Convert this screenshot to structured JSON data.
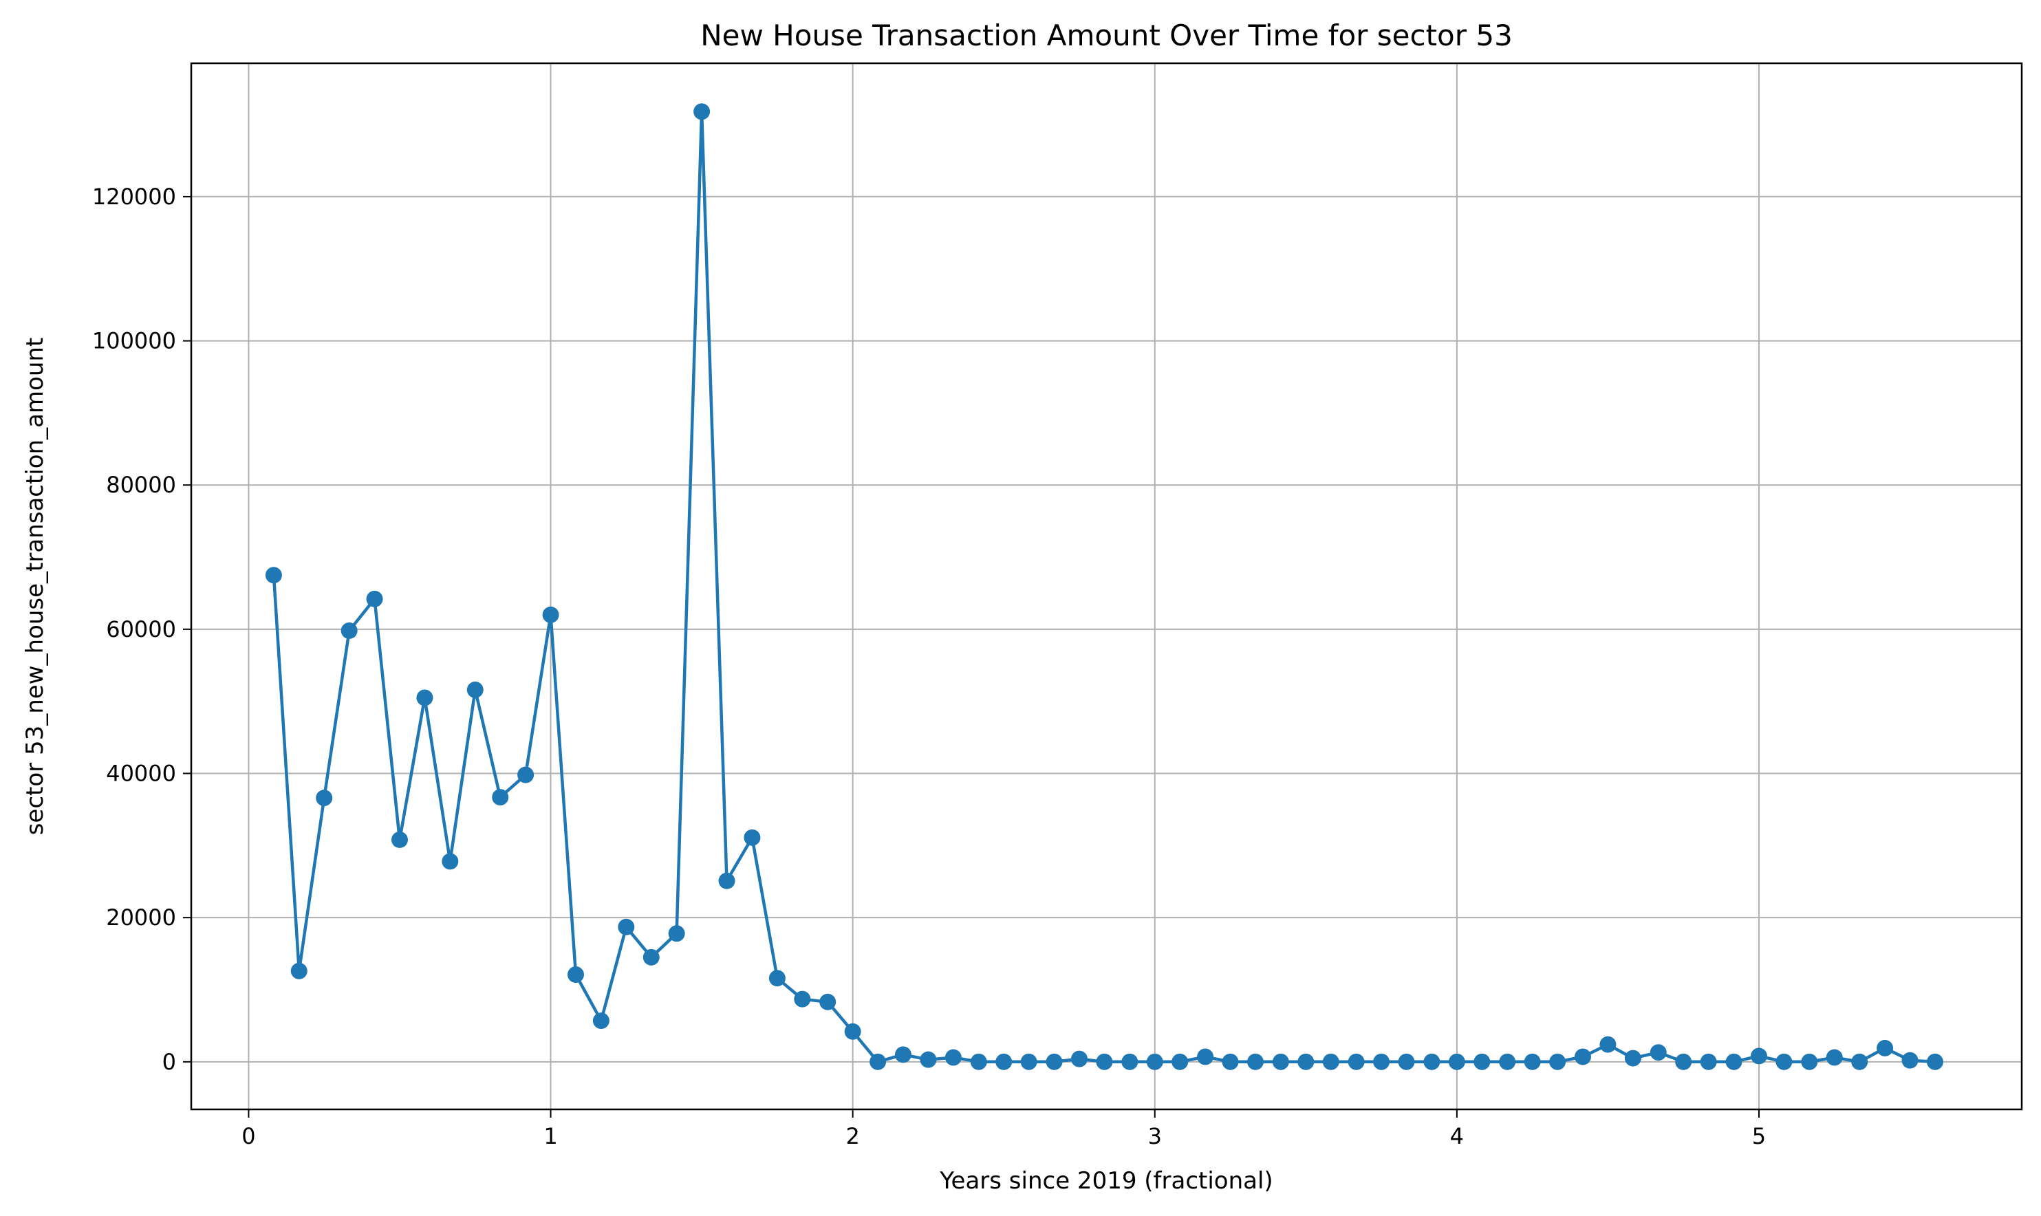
{
  "chart_data": {
    "type": "line",
    "title": "New House Transaction Amount Over Time for sector 53",
    "xlabel": "Years since 2019 (fractional)",
    "ylabel": "sector 53_new_house_transaction_amount",
    "xlim": [
      -0.19,
      5.87
    ],
    "ylim": [
      -6600,
      138500
    ],
    "xticks": [
      0,
      1,
      2,
      3,
      4,
      5
    ],
    "xtick_labels": [
      "0",
      "1",
      "2",
      "3",
      "4",
      "5"
    ],
    "yticks": [
      0,
      20000,
      40000,
      60000,
      80000,
      100000,
      120000
    ],
    "ytick_labels": [
      "0",
      "20000",
      "40000",
      "60000",
      "80000",
      "100000",
      "120000"
    ],
    "grid": true,
    "marker": "circle",
    "color": "#1f77b4",
    "series": [
      {
        "x": [
          0.083,
          0.167,
          0.25,
          0.333,
          0.417,
          0.5,
          0.583,
          0.667,
          0.75,
          0.833,
          0.917,
          1.0,
          1.083,
          1.167,
          1.25,
          1.333,
          1.417,
          1.5,
          1.583,
          1.667,
          1.75,
          1.833,
          1.917,
          2.0,
          2.083,
          2.167,
          2.25,
          2.333,
          2.417,
          2.5,
          2.583,
          2.667,
          2.75,
          2.833,
          2.917,
          3.0,
          3.083,
          3.167,
          3.25,
          3.333,
          3.417,
          3.5,
          3.583,
          3.667,
          3.75,
          3.833,
          3.917,
          4.0,
          4.083,
          4.167,
          4.25,
          4.333,
          4.417,
          4.5,
          4.583,
          4.667,
          4.75,
          4.833,
          4.917,
          5.0,
          5.083,
          5.167,
          5.25,
          5.333,
          5.417,
          5.5,
          5.583
        ],
        "y": [
          67500,
          12600,
          36600,
          59800,
          64200,
          30800,
          50500,
          27800,
          51600,
          36700,
          39800,
          62000,
          12100,
          5700,
          18700,
          14500,
          17800,
          131800,
          25100,
          31100,
          11600,
          8700,
          8300,
          4200,
          0,
          1000,
          300,
          600,
          0,
          0,
          0,
          0,
          400,
          0,
          0,
          0,
          0,
          700,
          0,
          0,
          0,
          0,
          0,
          0,
          0,
          0,
          0,
          0,
          0,
          0,
          0,
          0,
          700,
          2400,
          500,
          1300,
          0,
          0,
          0,
          800,
          0,
          0,
          600,
          0,
          1900,
          200,
          0
        ]
      }
    ]
  }
}
